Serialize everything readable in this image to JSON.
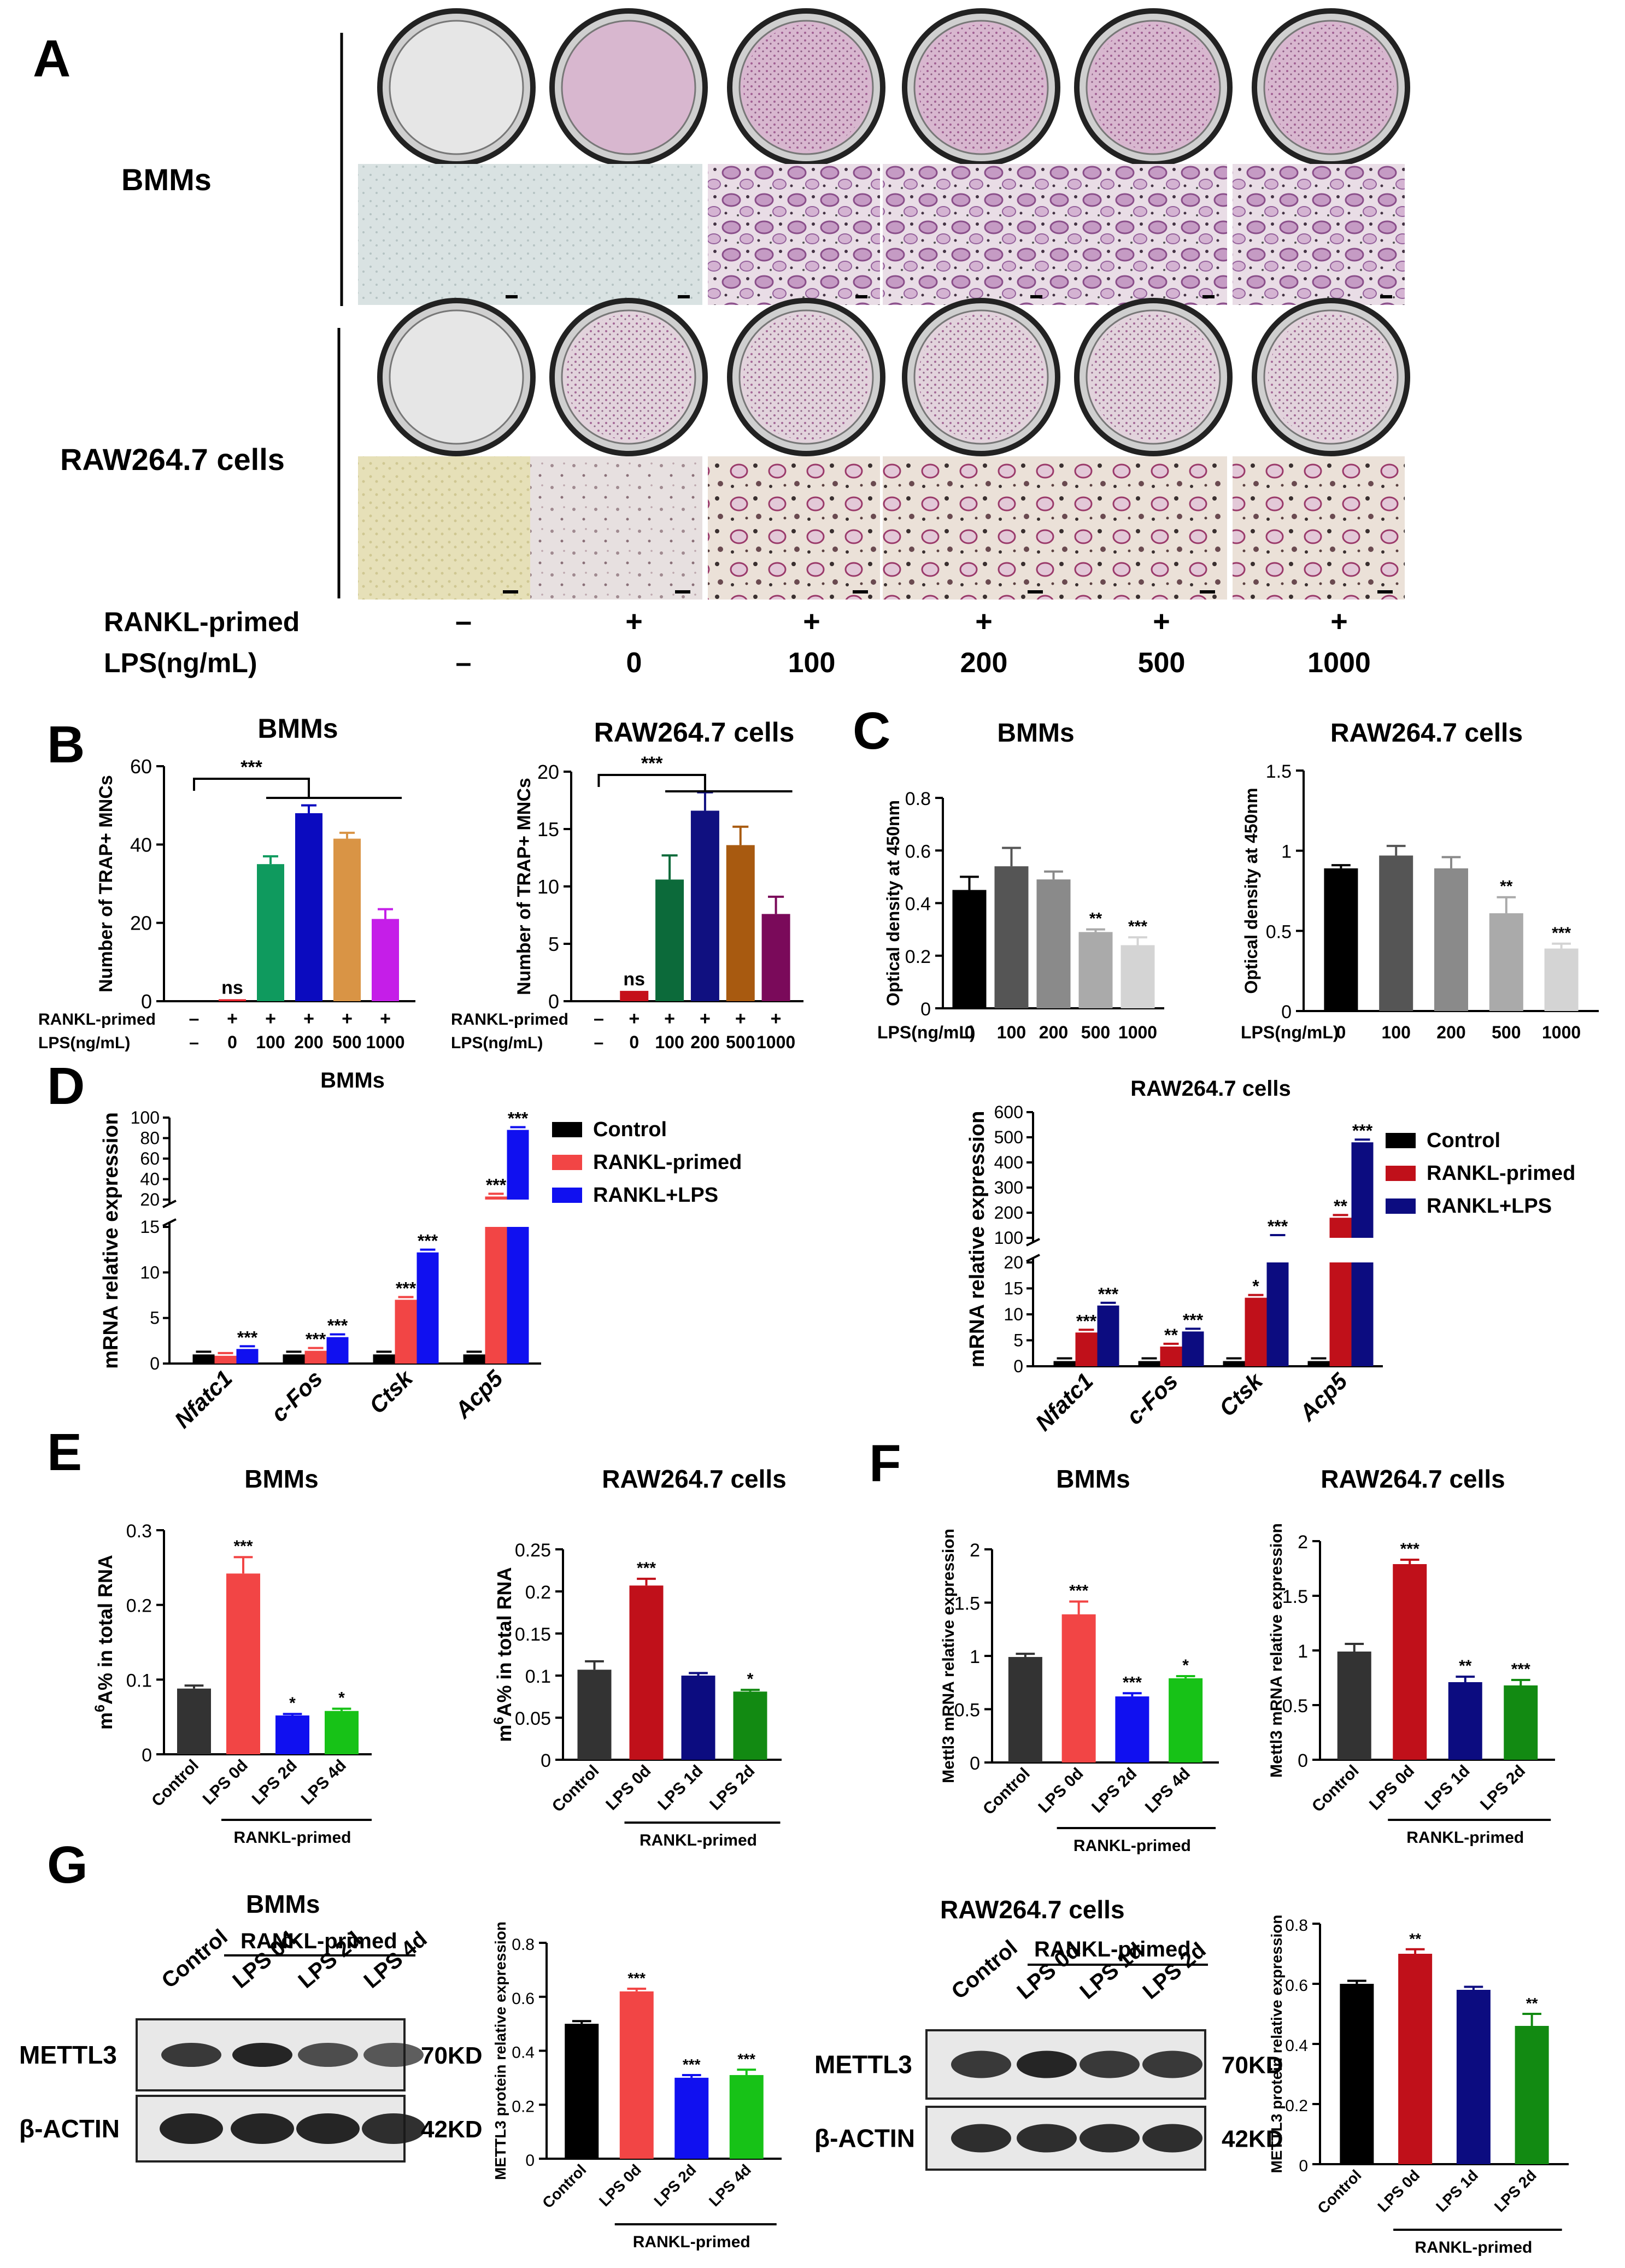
{
  "panel_letters": [
    "A",
    "B",
    "C",
    "D",
    "E",
    "F",
    "G"
  ],
  "panelA": {
    "row_labels": {
      "bmms": "BMMs",
      "raw": "RAW264.7 cells"
    },
    "rankl_label": "RANKL-primed",
    "lps_label": "LPS(ng/mL)",
    "rankl_values": [
      "–",
      "+",
      "+",
      "+",
      "+",
      "+"
    ],
    "lps_values": [
      "–",
      "0",
      "100",
      "200",
      "500",
      "1000"
    ]
  },
  "sig_overall": "***",
  "axis_tick_labels": {
    "rankl_row": "RANKL-primed",
    "lps_row": "LPS(ng/mL)",
    "rankl_marks": [
      "–",
      "+",
      "+",
      "+",
      "+",
      "+"
    ],
    "lps_marks": [
      "–",
      "0",
      "100",
      "200",
      "500",
      "1000"
    ],
    "lps_c": "LPS(ng/mL)",
    "lps_c_marks": [
      "0",
      "100",
      "200",
      "500",
      "1000"
    ],
    "rankl_group": "RANKL-primed"
  },
  "wb": {
    "bmms_title": "BMMs",
    "raw_title": "RAW264.7 cells",
    "group_label": "RANKL-primed",
    "bmms_lanes": [
      "Control",
      "LPS 0d",
      "LPS 2d",
      "LPS 4d"
    ],
    "raw_lanes": [
      "Control",
      "LPS 0d",
      "LPS 1d",
      "LPS 2d"
    ],
    "proteins": [
      "METTL3",
      "β-ACTIN"
    ],
    "sizes": [
      "70KD",
      "42KD"
    ]
  },
  "chart_data": [
    {
      "id": "B1",
      "type": "bar",
      "title": "BMMs",
      "ylabel": "Number of TRAP+ MNCs",
      "ylim": [
        0,
        60
      ],
      "yticks": [
        0,
        20,
        40,
        60
      ],
      "categories": [
        "–",
        "0",
        "100",
        "200",
        "500",
        "1000"
      ],
      "values": [
        0,
        0.5,
        35,
        48,
        41.5,
        21
      ],
      "errors": [
        0,
        0,
        2,
        2,
        1.5,
        2.5
      ],
      "colors": [
        "#000000",
        "#e4202a",
        "#0f9a5e",
        "#0b0bbf",
        "#d99445",
        "#c51ee8"
      ],
      "sig": [
        "",
        "ns",
        "",
        "",
        "",
        ""
      ]
    },
    {
      "id": "B2",
      "type": "bar",
      "title": "RAW264.7 cells",
      "ylabel": "Number of TRAP+ MNCs",
      "ylim": [
        0,
        20
      ],
      "yticks": [
        0,
        5,
        10,
        15,
        20
      ],
      "categories": [
        "–",
        "0",
        "100",
        "200",
        "500",
        "1000"
      ],
      "values": [
        0,
        0.9,
        10.6,
        16.6,
        13.6,
        7.6
      ],
      "errors": [
        0,
        0,
        2.1,
        1.6,
        1.6,
        1.5
      ],
      "colors": [
        "#000000",
        "#c5101a",
        "#0c6a3a",
        "#101080",
        "#a85a10",
        "#7a0a5a"
      ],
      "sig": [
        "",
        "ns",
        "",
        "",
        "",
        ""
      ]
    },
    {
      "id": "C1",
      "type": "bar",
      "title": "BMMs",
      "ylabel": "Optical density at 450nm",
      "ylim": [
        0,
        0.8
      ],
      "yticks": [
        0.0,
        0.2,
        0.4,
        0.6,
        0.8
      ],
      "categories": [
        "0",
        "100",
        "200",
        "500",
        "1000"
      ],
      "values": [
        0.45,
        0.54,
        0.49,
        0.29,
        0.24
      ],
      "errors": [
        0.05,
        0.07,
        0.03,
        0.01,
        0.03
      ],
      "colors": [
        "#000000",
        "#555555",
        "#8a8a8a",
        "#aaaaaa",
        "#d4d4d4"
      ],
      "sig": [
        "",
        "",
        "",
        "**",
        "***"
      ]
    },
    {
      "id": "C2",
      "type": "bar",
      "title": "RAW264.7 cells",
      "ylabel": "Optical density at 450nm",
      "ylim": [
        0,
        1.5
      ],
      "yticks": [
        0.0,
        0.5,
        1.0,
        1.5
      ],
      "categories": [
        "0",
        "100",
        "200",
        "500",
        "1000"
      ],
      "values": [
        0.89,
        0.97,
        0.89,
        0.61,
        0.39
      ],
      "errors": [
        0.02,
        0.06,
        0.07,
        0.1,
        0.03
      ],
      "colors": [
        "#000000",
        "#555555",
        "#8a8a8a",
        "#aaaaaa",
        "#d4d4d4"
      ],
      "sig": [
        "",
        "",
        "",
        "**",
        "***"
      ]
    },
    {
      "id": "D1",
      "type": "bar",
      "title": "BMMs",
      "ylabel": "mRNA relative expression",
      "categories": [
        "Nfatc1",
        "c-Fos",
        "Ctsk",
        "Acp5"
      ],
      "series": [
        {
          "name": "Control",
          "color": "#000000",
          "values": [
            1,
            1,
            1,
            1
          ]
        },
        {
          "name": "RANKL-primed",
          "color": "#f24545",
          "values": [
            0.85,
            1.4,
            7,
            23
          ]
        },
        {
          "name": "RANKL+LPS",
          "color": "#1010f0",
          "values": [
            1.6,
            2.9,
            12.2,
            88
          ]
        }
      ],
      "sig": [
        [
          "",
          "",
          "***"
        ],
        [
          "",
          "***",
          "***"
        ],
        [
          "",
          "***",
          "***"
        ],
        [
          "",
          "***",
          "***"
        ]
      ],
      "axis_low": {
        "range": [
          0,
          15
        ],
        "ticks": [
          0,
          5,
          10,
          15
        ]
      },
      "axis_high": {
        "range": [
          20,
          100
        ],
        "ticks": [
          20,
          40,
          60,
          80,
          100
        ]
      }
    },
    {
      "id": "D2",
      "type": "bar",
      "title": "RAW264.7 cells",
      "ylabel": "mRNA relative expression",
      "categories": [
        "Nfatc1",
        "c-Fos",
        "Ctsk",
        "Acp5"
      ],
      "series": [
        {
          "name": "Control",
          "color": "#000000",
          "values": [
            1,
            1,
            1,
            1
          ]
        },
        {
          "name": "RANKL-primed",
          "color": "#c0101a",
          "values": [
            6.5,
            3.8,
            13.2,
            180
          ]
        },
        {
          "name": "RANKL+LPS",
          "color": "#0c0c80",
          "values": [
            11.7,
            6.7,
            80,
            480
          ]
        }
      ],
      "sig": [
        [
          "",
          "***",
          "***"
        ],
        [
          "",
          "**",
          "***"
        ],
        [
          "",
          "*",
          "***"
        ],
        [
          "",
          "**",
          "***"
        ]
      ],
      "axis_low": {
        "range": [
          0,
          20
        ],
        "ticks": [
          0,
          5,
          10,
          15,
          20
        ]
      },
      "axis_high": {
        "range": [
          100,
          600
        ],
        "ticks": [
          100,
          200,
          300,
          400,
          500,
          600
        ]
      }
    },
    {
      "id": "E1",
      "type": "bar",
      "title": "BMMs",
      "ylabel": "m6A% in total RNA",
      "ylim": [
        0,
        0.3
      ],
      "yticks": [
        0.0,
        0.1,
        0.2,
        0.3
      ],
      "categories": [
        "Control",
        "LPS 0d",
        "LPS 2d",
        "LPS 4d"
      ],
      "values": [
        0.088,
        0.242,
        0.052,
        0.058
      ],
      "errors": [
        0.004,
        0.022,
        0.002,
        0.003
      ],
      "colors": [
        "#333333",
        "#f24545",
        "#1010f0",
        "#17c217"
      ],
      "sig": [
        "",
        "***",
        "*",
        "*"
      ]
    },
    {
      "id": "E2",
      "type": "bar",
      "title": "RAW264.7 cells",
      "ylabel": "m6A% in total RNA",
      "ylim": [
        0,
        0.25
      ],
      "yticks": [
        0.0,
        0.05,
        0.1,
        0.15,
        0.2,
        0.25
      ],
      "categories": [
        "Control",
        "LPS 0d",
        "LPS 1d",
        "LPS 2d"
      ],
      "values": [
        0.107,
        0.207,
        0.1,
        0.081
      ],
      "errors": [
        0.01,
        0.008,
        0.003,
        0.002
      ],
      "colors": [
        "#333333",
        "#c0101a",
        "#0c0c80",
        "#128a12"
      ],
      "sig": [
        "",
        "***",
        "",
        "*"
      ]
    },
    {
      "id": "F1",
      "type": "bar",
      "title": "BMMs",
      "ylabel": "Mettl3 mRNA relative expression",
      "ylim": [
        0,
        2.0
      ],
      "yticks": [
        0.0,
        0.5,
        1.0,
        1.5,
        2.0
      ],
      "categories": [
        "Control",
        "LPS 0d",
        "LPS 2d",
        "LPS 4d"
      ],
      "values": [
        0.99,
        1.39,
        0.62,
        0.79
      ],
      "errors": [
        0.03,
        0.12,
        0.03,
        0.02
      ],
      "colors": [
        "#333333",
        "#f24545",
        "#1010f0",
        "#17c217"
      ],
      "sig": [
        "",
        "***",
        "***",
        "*"
      ]
    },
    {
      "id": "F2",
      "type": "bar",
      "title": "RAW264.7 cells",
      "ylabel": "Mettl3 mRNA relative expression",
      "ylim": [
        0,
        2.0
      ],
      "yticks": [
        0.0,
        0.5,
        1.0,
        1.5,
        2.0
      ],
      "categories": [
        "Control",
        "LPS 0d",
        "LPS 1d",
        "LPS 2d"
      ],
      "values": [
        0.99,
        1.79,
        0.71,
        0.68
      ],
      "errors": [
        0.07,
        0.04,
        0.05,
        0.05
      ],
      "colors": [
        "#333333",
        "#c0101a",
        "#0c0c80",
        "#128a12"
      ],
      "sig": [
        "",
        "***",
        "**",
        "***"
      ]
    },
    {
      "id": "G1",
      "type": "bar",
      "title": "",
      "ylabel": "METTL3 protein relative expression",
      "ylim": [
        0,
        0.8
      ],
      "yticks": [
        0.0,
        0.2,
        0.4,
        0.6,
        0.8
      ],
      "categories": [
        "Control",
        "LPS 0d",
        "LPS 2d",
        "LPS 4d"
      ],
      "values": [
        0.5,
        0.62,
        0.3,
        0.31
      ],
      "errors": [
        0.01,
        0.01,
        0.01,
        0.02
      ],
      "colors": [
        "#000000",
        "#f24545",
        "#1010f0",
        "#17c217"
      ],
      "sig": [
        "",
        "***",
        "***",
        "***"
      ]
    },
    {
      "id": "G2",
      "type": "bar",
      "title": "",
      "ylabel": "METTL3 protein relative expression",
      "ylim": [
        0,
        0.8
      ],
      "yticks": [
        0.0,
        0.2,
        0.4,
        0.6,
        0.8
      ],
      "categories": [
        "Control",
        "LPS 0d",
        "LPS 1d",
        "LPS 2d"
      ],
      "values": [
        0.6,
        0.7,
        0.58,
        0.46
      ],
      "errors": [
        0.01,
        0.015,
        0.01,
        0.04
      ],
      "colors": [
        "#000000",
        "#c0101a",
        "#0c0c80",
        "#128a12"
      ],
      "sig": [
        "",
        "**",
        "",
        "**"
      ]
    }
  ]
}
